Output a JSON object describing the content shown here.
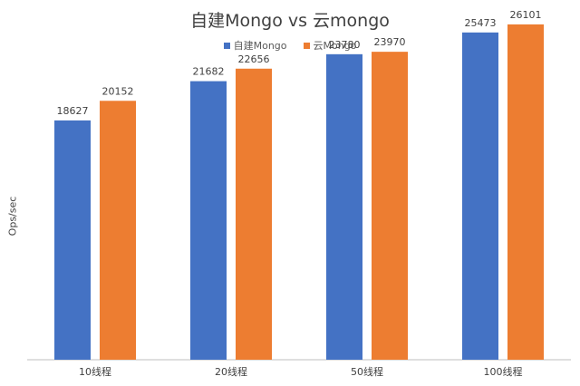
{
  "chart_data": {
    "type": "bar",
    "title": "自建Mongo vs 云mongo",
    "xlabel": "",
    "ylabel": "Ops/sec",
    "categories": [
      "10线程",
      "20线程",
      "50线程",
      "100线程"
    ],
    "series": [
      {
        "name": "自建Mongo",
        "color": "#4472C4",
        "values": [
          18627,
          21682,
          23780,
          25473
        ]
      },
      {
        "name": "云Mongo",
        "color": "#ED7D31",
        "values": [
          20152,
          22656,
          23970,
          26101
        ]
      }
    ],
    "ylim": [
      0,
      28000
    ],
    "grid": false,
    "legend": "top-center"
  }
}
